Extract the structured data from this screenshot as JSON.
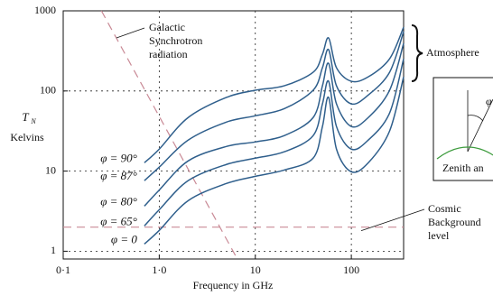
{
  "chart_data": {
    "type": "line",
    "x_label": "Frequency in GHz",
    "y_label": "T",
    "y_label_sub": "N",
    "y_unit": "Kelvins",
    "x_log": true,
    "y_log": true,
    "grid": true,
    "xlim": [
      0.1,
      350
    ],
    "ylim": [
      0.8,
      1000
    ],
    "xticks": [
      {
        "value": 0.1,
        "label": "0·1"
      },
      {
        "value": 1,
        "label": "1·0"
      },
      10,
      100
    ],
    "yticks": [
      1,
      10,
      100,
      1000
    ],
    "x": [
      0.7,
      1,
      2,
      5,
      10,
      20,
      40,
      50,
      58,
      70,
      100,
      150,
      250,
      350
    ],
    "series": [
      {
        "name": "φ = 90°",
        "color": "#2f5f8c",
        "values": [
          12.7,
          18.8,
          46.6,
          83,
          102,
          116,
          171,
          287,
          458,
          195,
          132,
          150,
          252,
          625
        ]
      },
      {
        "name": "φ = 87°",
        "color": "#2f5f8c",
        "values": [
          7.6,
          11.2,
          24.4,
          40.9,
          49,
          60,
          102,
          195,
          327,
          116,
          69,
          89,
          171,
          550
        ]
      },
      {
        "name": "φ = 80°",
        "color": "#2f5f8c",
        "values": [
          3.66,
          5.8,
          13.4,
          20.3,
          23.1,
          27.7,
          46.6,
          116,
          221,
          69,
          36,
          46.6,
          102,
          392
        ]
      },
      {
        "name": "φ = 65°",
        "color": "#2f5f8c",
        "values": [
          2.07,
          3.3,
          7.6,
          12.1,
          14.5,
          17.4,
          27.7,
          69,
          132,
          36,
          18.8,
          24.4,
          53,
          252
        ]
      },
      {
        "name": "φ = 0",
        "color": "#2f5f8c",
        "values": [
          1.23,
          1.82,
          4.28,
          7.0,
          8.6,
          10.3,
          14.5,
          36,
          83,
          18.8,
          9.8,
          12.7,
          31.6,
          150
        ]
      }
    ],
    "galactic": {
      "lines": [
        "Galactic",
        "Synchrotron",
        "radiation"
      ],
      "color": "#c98a96",
      "x": [
        0.25,
        6.5
      ],
      "values": [
        1000,
        0.8
      ]
    },
    "cosmic": {
      "lines": [
        "Cosmic",
        "Background",
        "level"
      ],
      "color": "#c98a96",
      "value": 2
    },
    "atmosphere": "Atmosphere",
    "inset": {
      "label": "Zenith an",
      "symbol": "φ"
    }
  }
}
